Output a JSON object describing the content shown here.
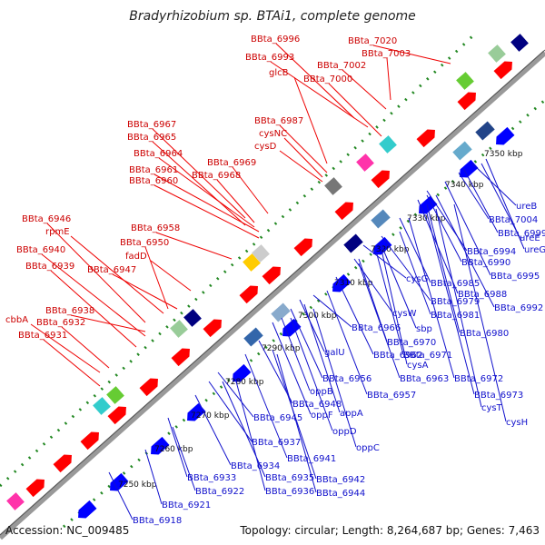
{
  "title": "Bradyrhizobium sp. BTAi1, complete genome",
  "footer": {
    "accession": "Accession: NC_009485",
    "summary": "Topology: circular; Length: 8,264,687 bp; Genes: 7,463"
  },
  "colors": {
    "forward": "#ff0000",
    "reverse": "#0000ff",
    "forward_label": "#cc0000",
    "reverse_label": "#1010cc",
    "backbone": "#999999",
    "gc_skew": "#228822"
  },
  "ticks": [
    "7250 kbp",
    "7260 kbp",
    "7270 kbp",
    "7280 kbp",
    "7290 kbp",
    "7300 kbp",
    "7310 kbp",
    "7320 kbp",
    "7330 kbp",
    "7340 kbp",
    "7350 kbp"
  ],
  "labels_red": [
    "BBta_6996",
    "BBta_7020",
    "BBta_6993",
    "BBta_7003",
    "BBta_7002",
    "glcB",
    "BBta_7000",
    "BBta_6987",
    "BBta_6967",
    "cysNC",
    "BBta_6965",
    "cysD",
    "BBta_6964",
    "BBta_6969",
    "BBta_6961",
    "BBta_6968",
    "BBta_6960",
    "BBta_6946",
    "BBta_6958",
    "rpmE",
    "BBta_6950",
    "BBta_6940",
    "fadD",
    "BBta_6939",
    "BBta_6947",
    "BBta_6938",
    "cbbA",
    "BBta_6932",
    "BBta_6931"
  ],
  "labels_blue": [
    "ureB",
    "BBta_7004",
    "BBta_6999",
    "ureE",
    "ureG",
    "BBta_6994",
    "BBta_6990",
    "BBta_6995",
    "cysG",
    "BBta_6985",
    "BBta_6988",
    "BBta_6979",
    "cysW",
    "BBta_6992",
    "BBta_6981",
    "sbp",
    "BBta_6966",
    "BBta_6980",
    "BBta_6970",
    "BBta_6971",
    "galU",
    "BBta_6962",
    "cysA",
    "BBta_6956",
    "BBta_6963",
    "BBta_6972",
    "oppB",
    "BBta_6957",
    "BBta_6973",
    "BBta_6948",
    "appA",
    "cysT",
    "oppF",
    "BBta_6945",
    "cysH",
    "oppD",
    "oppC",
    "BBta_6937",
    "BBta_6941",
    "BBta_6934",
    "BBta_6933",
    "BBta_6935",
    "BBta_6942",
    "BBta_6922",
    "BBta_6936",
    "BBta_6944",
    "BBta_6921",
    "BBta_6918"
  ]
}
